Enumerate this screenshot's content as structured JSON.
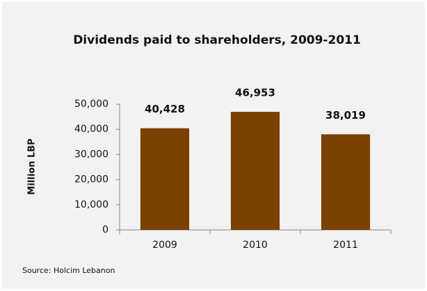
{
  "chart_data": {
    "type": "bar",
    "title": "Dividends paid to shareholders, 2009-2011",
    "y_label": "Million LBP",
    "categories": [
      "2009",
      "2010",
      "2011"
    ],
    "values": [
      40428,
      46953,
      38019
    ],
    "value_labels": [
      "40,428",
      "46,953",
      "38,019"
    ],
    "color": "#7b3f00",
    "ylim": [
      0,
      50000
    ],
    "yticks": [
      0,
      {
        "value": 10000,
        "label": "10,000"
      },
      {
        "value": 20000,
        "label": "20,000"
      },
      {
        "value": 30000,
        "label": "30,000"
      },
      {
        "value": 40000,
        "label": "40,000"
      },
      {
        "value": 50000,
        "label": "50,000"
      }
    ],
    "grid": false,
    "source": "Source: Holcim Lebanon"
  }
}
